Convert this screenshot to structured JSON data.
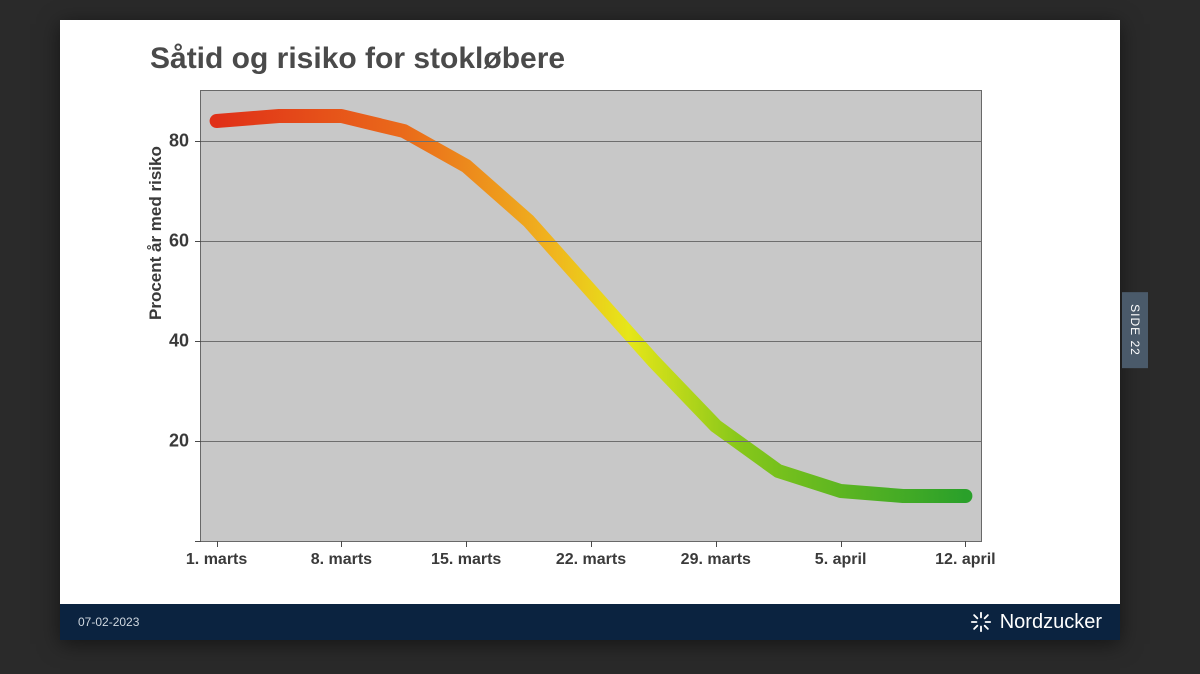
{
  "slide": {
    "background_color": "#ffffff",
    "title": "Såtid og risiko for stokløbere",
    "title_fontsize": 30,
    "title_color": "#4a4a4a",
    "footer": {
      "background_color": "#0b2340",
      "date": "07-02-2023",
      "brand": "Nordzucker"
    },
    "side_tab": "SIDE 22"
  },
  "chart": {
    "type": "line",
    "plot_background": "#c8c8c8",
    "grid_color": "#6e6e6e",
    "axis_color": "#696969",
    "ylabel": "Procent år med risiko",
    "ylabel_fontsize": 17,
    "ylim": [
      0,
      90
    ],
    "yticks": [
      0,
      20,
      40,
      60,
      80
    ],
    "yticks_visible_labels": [
      20,
      40,
      60,
      80
    ],
    "xlabels": [
      "1. marts",
      "8. marts",
      "15. marts",
      "22. marts",
      "29. marts",
      "5. april",
      "12. april"
    ],
    "x_positions_pct": [
      2,
      18,
      34,
      50,
      66,
      82,
      98
    ],
    "line_width": 14,
    "series": {
      "points": [
        {
          "x_pct": 2,
          "y": 84
        },
        {
          "x_pct": 10,
          "y": 85
        },
        {
          "x_pct": 18,
          "y": 85
        },
        {
          "x_pct": 26,
          "y": 82
        },
        {
          "x_pct": 34,
          "y": 75
        },
        {
          "x_pct": 42,
          "y": 64
        },
        {
          "x_pct": 50,
          "y": 50
        },
        {
          "x_pct": 58,
          "y": 36
        },
        {
          "x_pct": 66,
          "y": 23
        },
        {
          "x_pct": 74,
          "y": 14
        },
        {
          "x_pct": 82,
          "y": 10
        },
        {
          "x_pct": 90,
          "y": 9
        },
        {
          "x_pct": 98,
          "y": 9
        }
      ],
      "gradient_stops": [
        {
          "offset": "0%",
          "color": "#e03018"
        },
        {
          "offset": "25%",
          "color": "#ea6a1a"
        },
        {
          "offset": "45%",
          "color": "#f0b51e"
        },
        {
          "offset": "55%",
          "color": "#e6e619"
        },
        {
          "offset": "70%",
          "color": "#86c71a"
        },
        {
          "offset": "100%",
          "color": "#2aa02a"
        }
      ]
    }
  }
}
